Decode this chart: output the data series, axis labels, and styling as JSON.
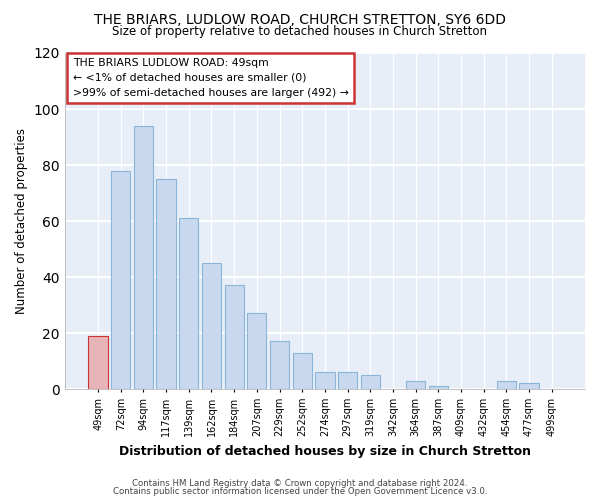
{
  "title": "THE BRIARS, LUDLOW ROAD, CHURCH STRETTON, SY6 6DD",
  "subtitle": "Size of property relative to detached houses in Church Stretton",
  "xlabel": "Distribution of detached houses by size in Church Stretton",
  "ylabel": "Number of detached properties",
  "bar_color": "#c8d8ee",
  "bar_edge_color": "#8ab4d8",
  "highlight_color": "#e8b4b8",
  "highlight_edge_color": "#cc3333",
  "categories": [
    "49sqm",
    "72sqm",
    "94sqm",
    "117sqm",
    "139sqm",
    "162sqm",
    "184sqm",
    "207sqm",
    "229sqm",
    "252sqm",
    "274sqm",
    "297sqm",
    "319sqm",
    "342sqm",
    "364sqm",
    "387sqm",
    "409sqm",
    "432sqm",
    "454sqm",
    "477sqm",
    "499sqm"
  ],
  "values": [
    19,
    78,
    94,
    75,
    61,
    45,
    37,
    27,
    17,
    13,
    6,
    6,
    5,
    0,
    3,
    1,
    0,
    0,
    3,
    2,
    0
  ],
  "highlight_index": 0,
  "ylim": [
    0,
    120
  ],
  "yticks": [
    0,
    20,
    40,
    60,
    80,
    100,
    120
  ],
  "annotation_title": "THE BRIARS LUDLOW ROAD: 49sqm",
  "annotation_line1": "← <1% of detached houses are smaller (0)",
  "annotation_line2": ">99% of semi-detached houses are larger (492) →",
  "footer1": "Contains HM Land Registry data © Crown copyright and database right 2024.",
  "footer2": "Contains public sector information licensed under the Open Government Licence v3.0.",
  "background_color": "#ffffff",
  "plot_bg_color": "#e8eef8"
}
